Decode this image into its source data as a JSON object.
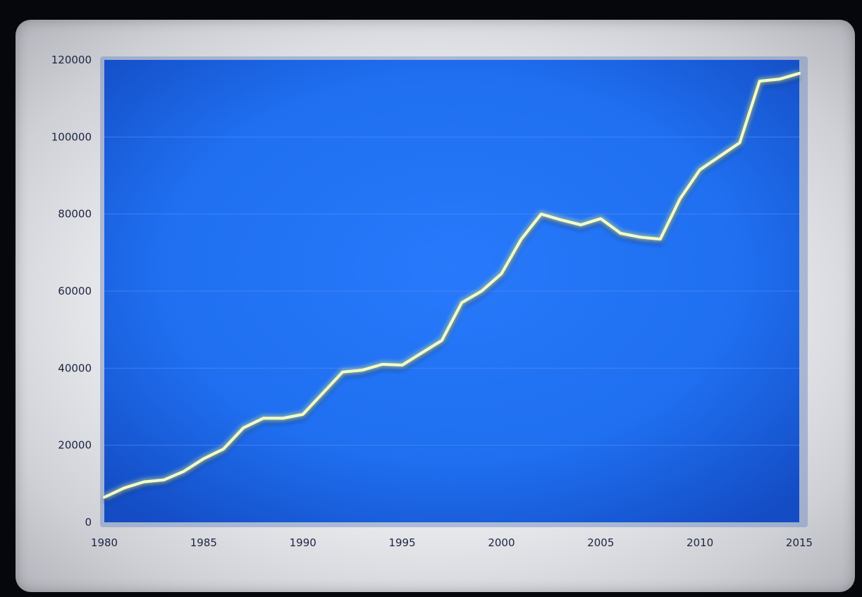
{
  "chart_data": {
    "type": "line",
    "title": "",
    "xlabel": "",
    "ylabel": "",
    "xlim": [
      1980,
      2015
    ],
    "ylim": [
      0,
      120000
    ],
    "grid": true,
    "legend": "none",
    "x_ticks": [
      "1980",
      "1985",
      "1990",
      "1995",
      "2000",
      "2005",
      "2010",
      "2015"
    ],
    "y_ticks": [
      "0",
      "20000",
      "40000",
      "60000",
      "80000",
      "100000",
      "120000"
    ],
    "x": [
      1980,
      1981,
      1982,
      1983,
      1984,
      1985,
      1986,
      1987,
      1988,
      1989,
      1990,
      1991,
      1992,
      1993,
      1994,
      1995,
      1996,
      1997,
      1998,
      1999,
      2000,
      2001,
      2002,
      2003,
      2004,
      2005,
      2006,
      2007,
      2008,
      2009,
      2010,
      2011,
      2012,
      2013,
      2014,
      2015
    ],
    "series": [
      {
        "values": [
          6500,
          8900,
          10500,
          11000,
          13200,
          16500,
          19000,
          24500,
          27000,
          27000,
          28000,
          33500,
          39000,
          39500,
          41000,
          40800,
          44000,
          47200,
          57000,
          60000,
          64500,
          73500,
          80000,
          78500,
          77200,
          78800,
          75000,
          74000,
          73500,
          84000,
          91500,
          95000,
          98500,
          114500,
          115000,
          116500
        ]
      }
    ],
    "colors": {
      "plot_background": "#1f6ff0",
      "line": "#f4ffc6",
      "line_glow": "#cfe58a",
      "frame": "#eceef2",
      "gridline": "#5b8ff7"
    }
  }
}
